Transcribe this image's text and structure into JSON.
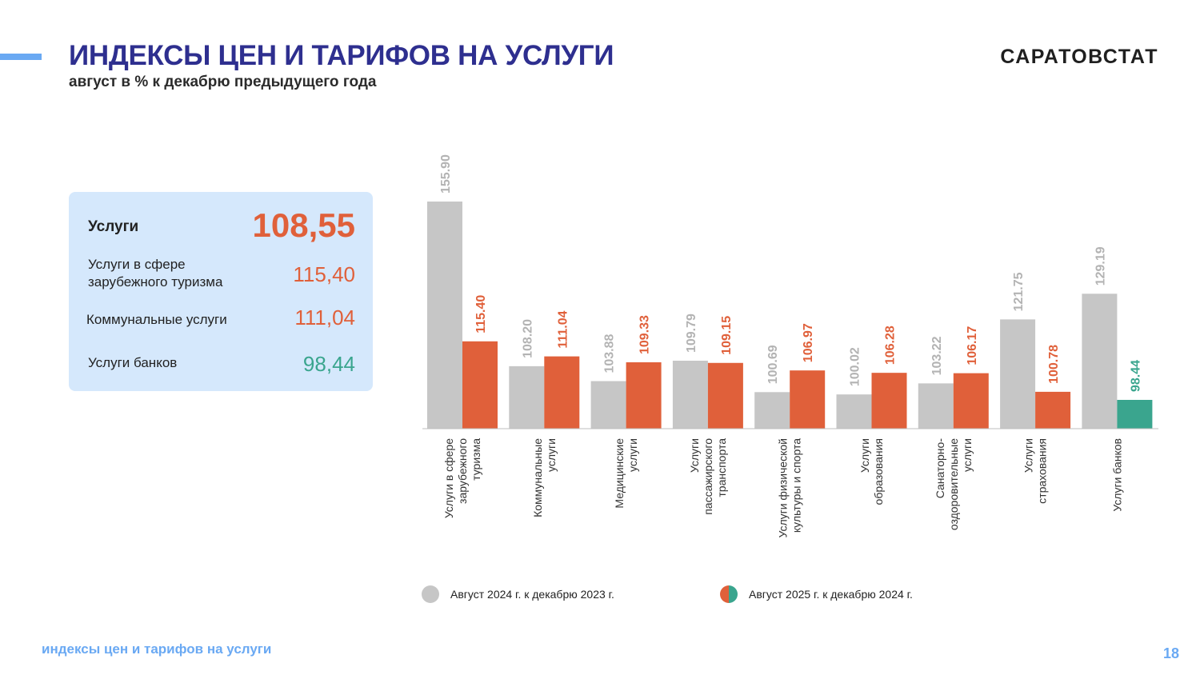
{
  "header": {
    "title": "ИНДЕКСЫ ЦЕН И ТАРИФОВ НА УСЛУГИ",
    "subtitle": "август в % к декабрю предыдущего года",
    "brand": "САРАТОВСТАТ"
  },
  "summary": {
    "main_label": "Услуги",
    "main_value": "108,55",
    "rows": [
      {
        "label": "Услуги в сфере зарубежного туризма",
        "value": "115,40"
      },
      {
        "label": "Коммунальные услуги",
        "value": "111,04"
      },
      {
        "label": "Услуги банков",
        "value": "98,44"
      }
    ]
  },
  "colors": {
    "gray": "#c6c6c6",
    "orange": "#e0603a",
    "teal": "#3aa58e",
    "title": "#2e2f8f",
    "accent": "#6aa9f3"
  },
  "chart_data": {
    "type": "bar",
    "categories": [
      [
        "Услуги в сфере",
        "зарубежного",
        "туризма"
      ],
      [
        "Коммунальные",
        "услуги"
      ],
      [
        "Медицинские",
        "услуги"
      ],
      [
        "Услуги",
        "пассажирского",
        "транспорта"
      ],
      [
        "Услуги физической",
        "культуры и спорта"
      ],
      [
        "Услуги",
        "образования"
      ],
      [
        "Санаторно-",
        "оздоровительные",
        "услуги"
      ],
      [
        "Услуги",
        "страхования"
      ],
      [
        "Услуги банков"
      ]
    ],
    "series": [
      {
        "name": "Август 2024 г. к декабрю  2023 г.",
        "values": [
          155.9,
          108.2,
          103.88,
          109.79,
          100.69,
          100.02,
          103.22,
          121.75,
          129.19
        ],
        "labels": [
          "155.90",
          "108.20",
          "103.88",
          "109.79",
          "100.69",
          "100.02",
          "103.22",
          "121.75",
          "129.19"
        ]
      },
      {
        "name": "Август  2025 г. к декабрю  2024 г.",
        "values": [
          115.4,
          111.04,
          109.33,
          109.15,
          106.97,
          106.28,
          106.17,
          100.78,
          98.44
        ],
        "labels": [
          "115.40",
          "111.04",
          "109.33",
          "109.15",
          "106.97",
          "106.28",
          "106.17",
          "100.78",
          "98.44"
        ]
      }
    ],
    "ylim": [
      90,
      160
    ],
    "grid": false,
    "legend": "bottom"
  },
  "footer": {
    "text": "индексы цен и тарифов на услуги",
    "page": "18"
  }
}
